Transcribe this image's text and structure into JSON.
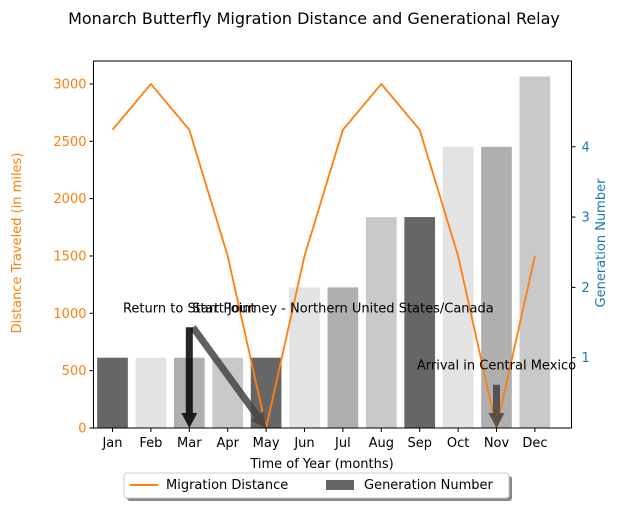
{
  "chart_data": {
    "type": "bar+line",
    "title": "Monarch Butterfly Migration Distance and Generational Relay",
    "xlabel": "Time of Year (months)",
    "ylabel_left": "Distance Traveled (in miles)",
    "ylabel_right": "Generation Number",
    "categories": [
      "Jan",
      "Feb",
      "Mar",
      "Apr",
      "May",
      "Jun",
      "Jul",
      "Aug",
      "Sep",
      "Oct",
      "Nov",
      "Dec"
    ],
    "line_series": {
      "name": "Migration Distance",
      "axis": "left",
      "color": "#ff7f0e",
      "values": [
        2600,
        3000,
        2600,
        1500,
        0,
        1500,
        2600,
        3000,
        2600,
        1500,
        0,
        1500
      ]
    },
    "bar_series": {
      "name": "Generation Number",
      "axis": "right",
      "values": [
        1,
        1,
        1,
        1,
        1,
        2,
        2,
        3,
        3,
        4,
        4,
        5
      ],
      "colors": [
        "#666666",
        "#e3e3e3",
        "#afafaf",
        "#c9c9c9",
        "#666666",
        "#e3e3e3",
        "#afafaf",
        "#c9c9c9",
        "#666666",
        "#e3e3e3",
        "#afafaf",
        "#c9c9c9"
      ]
    },
    "ylim_left": [
      0,
      3200
    ],
    "yticks_left": [
      0,
      500,
      1000,
      1500,
      2000,
      2500,
      3000
    ],
    "ylim_right": [
      0,
      5.22
    ],
    "yticks_right": [
      1,
      2,
      3,
      4
    ],
    "annotations": [
      {
        "text": "Start Journey - Northern United States/Canada",
        "x_category": "May",
        "y": 0,
        "text_x_category": "Jul",
        "text_y": 1000
      },
      {
        "text": "Return to Start Point",
        "x_category": "Mar",
        "y": 0,
        "text_x_category": "Mar",
        "text_y": 1000
      },
      {
        "text": "Arrival in Central Mexico",
        "x_category": "Nov",
        "y": 0,
        "text_x_category": "Nov",
        "text_y": 500
      }
    ],
    "legend": {
      "placement": "bottom-center",
      "entries": [
        "Migration Distance",
        "Generation Number"
      ]
    },
    "left_axis_color": "#ff7f0e",
    "right_axis_color": "#1f77b4",
    "grid": false
  }
}
